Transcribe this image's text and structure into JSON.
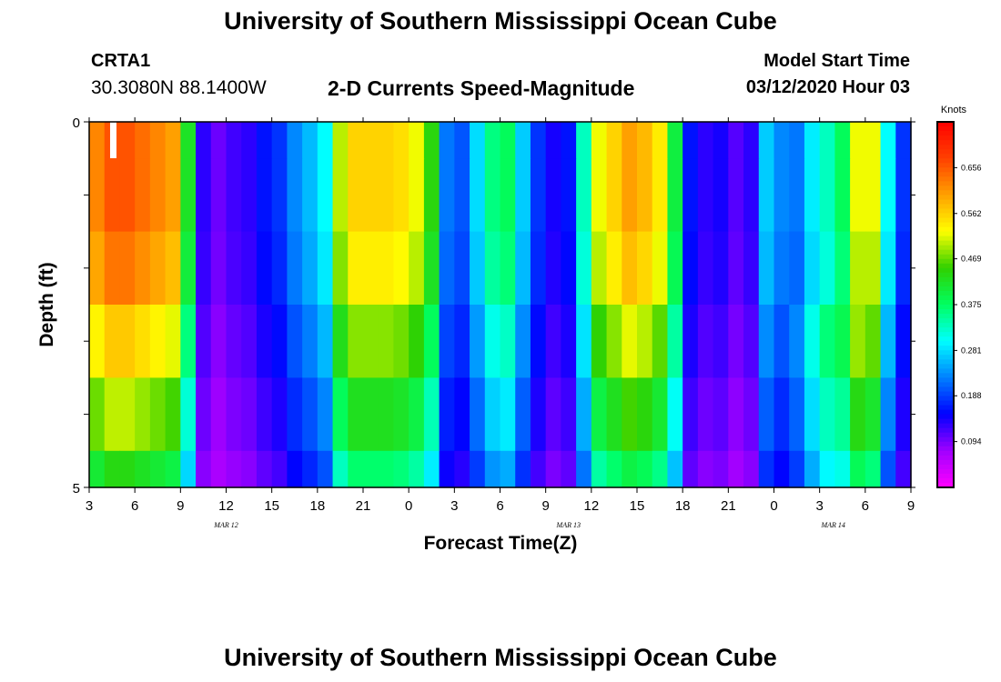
{
  "header": {
    "title": "University of Southern Mississippi Ocean Cube",
    "station": "CRTA1",
    "coords": "30.3080N 88.1400W",
    "chart_title": "2-D Currents Speed-Magnitude",
    "start_label": "Model Start Time",
    "start_value": "03/12/2020 Hour 03"
  },
  "footer": {
    "title": "University of Southern Mississippi Ocean Cube"
  },
  "chart_data": {
    "type": "heatmap",
    "title": "2-D Currents Speed-Magnitude",
    "xlabel": "Forecast Time(Z)",
    "ylabel": "Depth (ft)",
    "units": "Knots",
    "x_tick_labels": [
      "3",
      "6",
      "9",
      "12",
      "15",
      "18",
      "21",
      "0",
      "3",
      "6",
      "9",
      "12",
      "15",
      "18",
      "21",
      "0",
      "3",
      "6",
      "9"
    ],
    "date_labels": [
      {
        "label": "MAR 12",
        "at_tick": 3
      },
      {
        "label": "MAR 13",
        "at_tick": 10.5
      },
      {
        "label": "MAR 14",
        "at_tick": 16.3
      }
    ],
    "y_tick_labels": [
      "0",
      "",
      "",
      "",
      "",
      "5"
    ],
    "ylim": [
      0,
      5
    ],
    "colorbar": {
      "label": "Knots",
      "ticks": [
        "0.094",
        "0.188",
        "0.281",
        "0.375",
        "0.469",
        "0.562",
        "0.656"
      ],
      "range": [
        0.0,
        0.75
      ]
    },
    "colormap": [
      "#ff00ff",
      "#a000ff",
      "#0000ff",
      "#0080ff",
      "#00ffff",
      "#00ff60",
      "#30d000",
      "#ffff00",
      "#ffa000",
      "#ff4000",
      "#ff0000"
    ],
    "colors": {
      "frame": "#000000"
    },
    "time_steps_hours": 54,
    "depth_layers": [
      0,
      0.5,
      1.5,
      2.5,
      3.5,
      4.5
    ],
    "speed_knots_surface": [
      0.62,
      0.66,
      0.66,
      0.64,
      0.62,
      0.6,
      0.42,
      0.13,
      0.1,
      0.12,
      0.13,
      0.16,
      0.18,
      0.23,
      0.26,
      0.3,
      0.5,
      0.56,
      0.56,
      0.56,
      0.55,
      0.52,
      0.44,
      0.22,
      0.2,
      0.28,
      0.36,
      0.38,
      0.27,
      0.18,
      0.14,
      0.16,
      0.33,
      0.52,
      0.56,
      0.6,
      0.58,
      0.54,
      0.4,
      0.16,
      0.13,
      0.14,
      0.11,
      0.13,
      0.27,
      0.23,
      0.22,
      0.29,
      0.33,
      0.38,
      0.52,
      0.52,
      0.3,
      0.18
    ],
    "depth_scale": [
      1.0,
      1.0,
      0.96,
      0.86,
      0.76,
      0.66
    ],
    "column_offsets": [
      0,
      0,
      0,
      0,
      0,
      0,
      0,
      0,
      0,
      0,
      0,
      0,
      0,
      0,
      0,
      0,
      0,
      0,
      0,
      0,
      0,
      0,
      0,
      0,
      0,
      0,
      0,
      0,
      0,
      0,
      0,
      0,
      0,
      0,
      0,
      0,
      0,
      0,
      0,
      0,
      0,
      0,
      0,
      0,
      0,
      0,
      0.04,
      0.06,
      0.08,
      0.06,
      0.04,
      0.02,
      0,
      0
    ]
  }
}
